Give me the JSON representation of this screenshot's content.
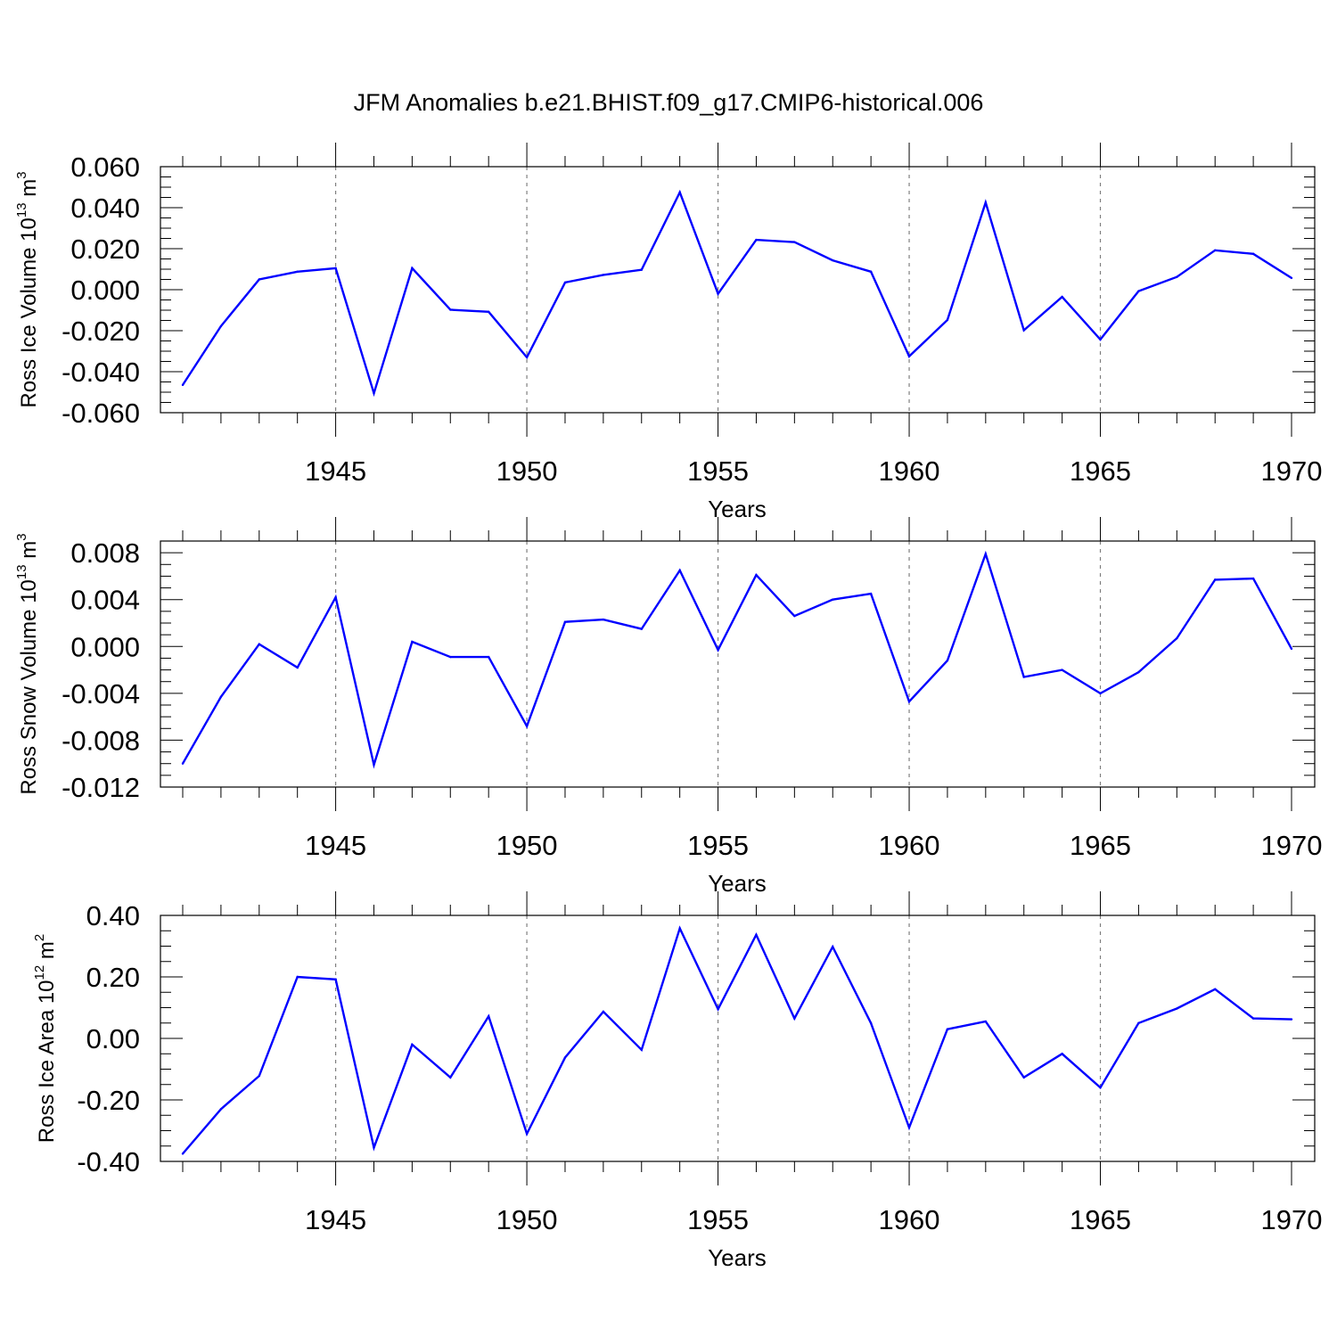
{
  "title": "JFM Anomalies b.e21.BHIST.f09_g17.CMIP6-historical.006",
  "colors": {
    "line": "#0000ff",
    "axis": "#000000",
    "grid": "#7f7f7f"
  },
  "chart_data": [
    {
      "type": "line",
      "xlabel": "Years",
      "ylabel": {
        "prefix": "Ross Ice Volume 10",
        "exp": "13",
        "unit": " m",
        "unit_exp": "3"
      },
      "xlim": [
        1941,
        1970
      ],
      "ylim": [
        -0.06,
        0.06
      ],
      "x_ticks": [
        "1945",
        "1950",
        "1955",
        "1960",
        "1965",
        "1970"
      ],
      "y_ticks": [
        "-0.060",
        "-0.040",
        "-0.020",
        "0.000",
        "0.020",
        "0.040",
        "0.060"
      ],
      "grid": "dashed vertical lines at major x ticks",
      "x": [
        1941,
        1942,
        1943,
        1944,
        1945,
        1946,
        1947,
        1948,
        1949,
        1950,
        1951,
        1952,
        1953,
        1954,
        1955,
        1956,
        1957,
        1958,
        1959,
        1960,
        1961,
        1962,
        1963,
        1964,
        1965,
        1966,
        1967,
        1968,
        1969,
        1970
      ],
      "values": [
        -0.0465,
        -0.0178,
        0.005,
        0.0088,
        0.0105,
        -0.0505,
        0.0105,
        -0.0098,
        -0.0108,
        -0.033,
        0.0035,
        0.0072,
        0.0097,
        0.0475,
        -0.002,
        0.0243,
        0.0232,
        0.0143,
        0.0088,
        -0.0325,
        -0.0148,
        0.0425,
        -0.0198,
        -0.0035,
        -0.0243,
        -0.0007,
        0.0062,
        0.0192,
        0.0175,
        0.0057
      ]
    },
    {
      "type": "line",
      "xlabel": "Years",
      "ylabel": {
        "prefix": "Ross Snow Volume 10",
        "exp": "13",
        "unit": " m",
        "unit_exp": "3"
      },
      "xlim": [
        1941,
        1970
      ],
      "ylim": [
        -0.012,
        0.009
      ],
      "x_ticks": [
        "1945",
        "1950",
        "1955",
        "1960",
        "1965",
        "1970"
      ],
      "y_ticks": [
        "-0.012",
        "-0.008",
        "-0.004",
        "0.000",
        "0.004",
        "0.008"
      ],
      "grid": "dashed vertical lines at major x ticks",
      "x": [
        1941,
        1942,
        1943,
        1944,
        1945,
        1946,
        1947,
        1948,
        1949,
        1950,
        1951,
        1952,
        1953,
        1954,
        1955,
        1956,
        1957,
        1958,
        1959,
        1960,
        1961,
        1962,
        1963,
        1964,
        1965,
        1966,
        1967,
        1968,
        1969,
        1970
      ],
      "values": [
        -0.01,
        -0.0043,
        0.0002,
        -0.0018,
        0.0042,
        -0.0101,
        0.0004,
        -0.0009,
        -0.0009,
        -0.0068,
        0.0021,
        0.0023,
        0.0015,
        0.0065,
        -0.0003,
        0.0061,
        0.0026,
        0.004,
        0.0045,
        -0.0047,
        -0.0012,
        0.0079,
        -0.0026,
        -0.002,
        -0.004,
        -0.0022,
        0.0007,
        0.0057,
        0.0058,
        -0.0002
      ]
    },
    {
      "type": "line",
      "xlabel": "Years",
      "ylabel": {
        "prefix": "Ross Ice Area 10",
        "exp": "12",
        "unit": " m",
        "unit_exp": "2"
      },
      "xlim": [
        1941,
        1970
      ],
      "ylim": [
        -0.4,
        0.4
      ],
      "x_ticks": [
        "1945",
        "1950",
        "1955",
        "1960",
        "1965",
        "1970"
      ],
      "y_ticks": [
        "-0.40",
        "-0.20",
        "0.00",
        "0.20",
        "0.40"
      ],
      "grid": "dashed vertical lines at major x ticks",
      "x": [
        1941,
        1942,
        1943,
        1944,
        1945,
        1946,
        1947,
        1948,
        1949,
        1950,
        1951,
        1952,
        1953,
        1954,
        1955,
        1956,
        1957,
        1958,
        1959,
        1960,
        1961,
        1962,
        1963,
        1964,
        1965,
        1966,
        1967,
        1968,
        1969,
        1970
      ],
      "values": [
        -0.375,
        -0.23,
        -0.122,
        0.2,
        0.192,
        -0.355,
        -0.02,
        -0.127,
        0.072,
        -0.31,
        -0.062,
        0.087,
        -0.037,
        0.358,
        0.095,
        0.337,
        0.065,
        0.298,
        0.05,
        -0.29,
        0.03,
        0.055,
        -0.127,
        -0.05,
        -0.16,
        0.05,
        0.097,
        0.16,
        0.065,
        0.062
      ]
    }
  ]
}
